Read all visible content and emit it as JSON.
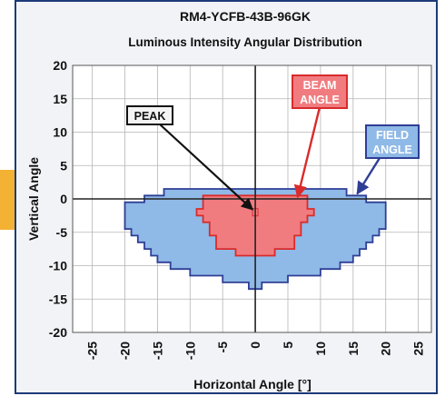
{
  "chart_data": {
    "type": "heatmap",
    "title": "RM4-YCFB-43B-96GK",
    "subtitle": "Luminous Intensity Angular Distribution",
    "xlabel": "Horizontal Angle [°]",
    "ylabel": "Vertical Angle",
    "xlim": [
      -28,
      27
    ],
    "ylim": [
      -20,
      20
    ],
    "x_ticks": [
      "-25",
      "-20",
      "-15",
      "-10",
      "-5",
      "0",
      "5",
      "10",
      "15",
      "20",
      "25"
    ],
    "y_ticks": [
      "20",
      "15",
      "10",
      "5",
      "0",
      "-5",
      "-10",
      "-15",
      "-20"
    ],
    "grid": true,
    "series": [
      {
        "name": "FIELD ANGLE",
        "color": "#8fb9e6",
        "edge_color": "#2e3e96",
        "rows": [
          {
            "y": 1,
            "x0": -14,
            "x1": 14
          },
          {
            "y": 0,
            "x0": -17,
            "x1": 17
          },
          {
            "y": -1,
            "x0": -20,
            "x1": 20
          },
          {
            "y": -2,
            "x0": -20,
            "x1": 20
          },
          {
            "y": -4,
            "x0": -20,
            "x1": 20
          },
          {
            "y": -5,
            "x0": -19,
            "x1": 19
          },
          {
            "y": -6,
            "x0": -18,
            "x1": 18
          },
          {
            "y": -7,
            "x0": -17,
            "x1": 17
          },
          {
            "y": -8,
            "x0": -16,
            "x1": 16
          },
          {
            "y": -9,
            "x0": -15,
            "x1": 15
          },
          {
            "y": -10,
            "x0": -13,
            "x1": 13
          },
          {
            "y": -11,
            "x0": -10,
            "x1": 10
          },
          {
            "y": -12,
            "x0": -5,
            "x1": 5
          },
          {
            "y": -13,
            "x0": -1,
            "x1": 1
          }
        ],
        "label": "FIELD\nANGLE"
      },
      {
        "name": "BEAM ANGLE",
        "color": "#f07c80",
        "edge_color": "#d92b2b",
        "rows": [
          {
            "y": 0,
            "x0": -8,
            "x1": 8
          },
          {
            "y": -1,
            "x0": -8,
            "x1": 8
          },
          {
            "y": -2,
            "x0": -9,
            "x1": 9
          },
          {
            "y": -3,
            "x0": -8,
            "x1": 8
          },
          {
            "y": -4,
            "x0": -7,
            "x1": 7
          },
          {
            "y": -5,
            "x0": -7,
            "x1": 7
          },
          {
            "y": -6,
            "x0": -6,
            "x1": 6
          },
          {
            "y": -7,
            "x0": -6,
            "x1": 6
          },
          {
            "y": -8,
            "x0": -3,
            "x1": 3
          }
        ],
        "label": "BEAM\nANGLE"
      }
    ],
    "annotations": [
      {
        "text": "PEAK",
        "point": [
          0,
          -2
        ]
      },
      {
        "text": "BEAM\nANGLE",
        "point": [
          6.5,
          0
        ]
      },
      {
        "text": "FIELD\nANGLE",
        "point": [
          15.5,
          0.5
        ]
      }
    ]
  }
}
